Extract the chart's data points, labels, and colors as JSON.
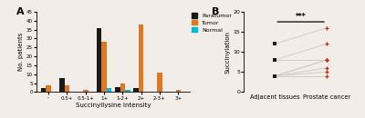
{
  "bar_categories": [
    "-",
    "0.5+",
    "0.5-1+",
    "1+",
    "1-2+",
    "2+",
    "2-3+",
    "3+"
  ],
  "bar_paratumor": [
    2,
    8,
    0,
    36,
    3,
    2,
    0,
    0
  ],
  "bar_tumor": [
    4,
    4,
    1,
    28,
    5,
    38,
    11,
    1
  ],
  "bar_normal": [
    0,
    0,
    0,
    2,
    1,
    0,
    0,
    0
  ],
  "bar_colors": {
    "Paratumor": "#1a1a1a",
    "Tumor": "#e07820",
    "Normal": "#00bcd4"
  },
  "bar_ylim": [
    0,
    45
  ],
  "bar_xlabel": "Succinyllysine intensity",
  "bar_ylabel": "No. patients",
  "panel_a_label": "A",
  "adjacent_tissues": [
    12,
    8,
    8,
    4
  ],
  "prostate_cancer": [
    16,
    12,
    8,
    8,
    8,
    6,
    6,
    5,
    4,
    4
  ],
  "paired_left": [
    12,
    8,
    8,
    4,
    4,
    4,
    4,
    4
  ],
  "paired_right": [
    16,
    12,
    8,
    8,
    8,
    6,
    5,
    4
  ],
  "dot_ylim": [
    0,
    20
  ],
  "dot_yticks": [
    0,
    5,
    10,
    15,
    20
  ],
  "dot_ylabel": "Succinylation",
  "dot_xlabel_left": "Adjacent tissues",
  "dot_xlabel_right": "Prostate cancer",
  "panel_b_label": "B",
  "sig_label": "***",
  "legend_labels": [
    "Paratumor",
    "Tumor",
    "Normal"
  ],
  "background_color": "#f2ede8"
}
